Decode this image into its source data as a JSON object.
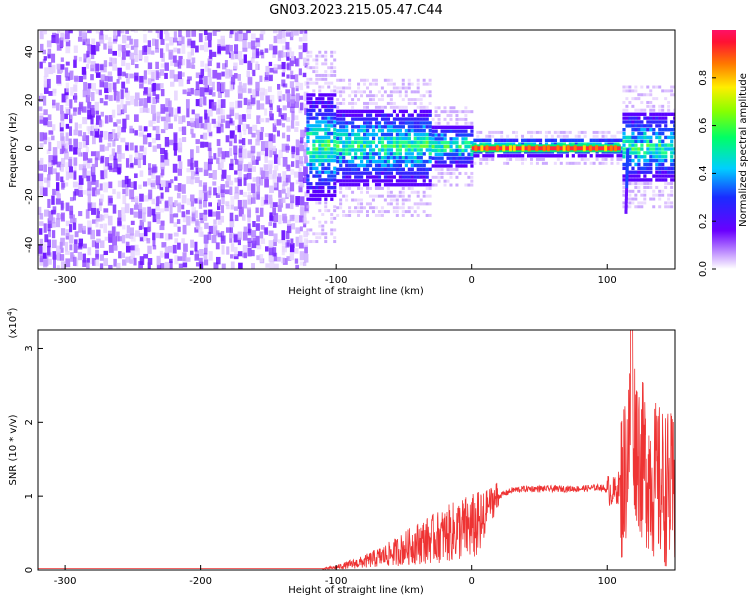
{
  "figure": {
    "title": "GN03.2023.215.05.47.C44"
  },
  "chart_data": [
    {
      "type": "heatmap",
      "title": "GN03.2023.215.05.47.C44",
      "xlabel": "Height of straight line (km)",
      "ylabel": "Frequency (Hz)",
      "xlim": [
        -320,
        150
      ],
      "ylim": [
        -50,
        49
      ],
      "x_ticks": [
        "-300",
        "-200",
        "-100",
        "0",
        "100"
      ],
      "y_ticks": [
        "-40",
        "-20",
        "0",
        "20",
        "40"
      ],
      "colorbar": {
        "label": "Normalized spectral amplitude",
        "range": [
          0,
          1
        ],
        "ticks": [
          "0.0",
          "0.2",
          "0.4",
          "0.6",
          "0.8"
        ]
      },
      "features": {
        "broadband_noise_region_km": [
          -320,
          -122
        ],
        "signal_band_center_hz": 0,
        "strong_narrowband_segment_km": [
          0,
          110
        ],
        "dip_near_km": 114,
        "dip_min_hz": -27
      }
    },
    {
      "type": "line",
      "xlabel": "Height of straight line (km)",
      "ylabel": "SNR (10 * v/v)",
      "y_multiplier": "(x10",
      "y_multiplier_exp": "4",
      "y_multiplier_close": ")",
      "xlim": [
        -320,
        150
      ],
      "ylim": [
        0,
        3.25
      ],
      "x_ticks": [
        "-300",
        "-200",
        "-100",
        "0",
        "100"
      ],
      "y_ticks": [
        "0",
        "1",
        "2",
        "3"
      ],
      "line_color": "#ee3333",
      "series": [
        {
          "x": [
            -320,
            -200,
            -110,
            -100,
            -80,
            -60,
            -40,
            -20,
            -10,
            0,
            10,
            20,
            30,
            40,
            60,
            80,
            95,
            105,
            112,
            118,
            125,
            135,
            150
          ],
          "y": [
            0.02,
            0.02,
            0.02,
            0.05,
            0.15,
            0.3,
            0.5,
            0.65,
            0.75,
            0.8,
            0.85,
            1.0,
            1.08,
            1.1,
            1.1,
            1.1,
            1.12,
            1.05,
            1.2,
            2.0,
            1.5,
            1.2,
            1.0
          ]
        }
      ]
    }
  ]
}
